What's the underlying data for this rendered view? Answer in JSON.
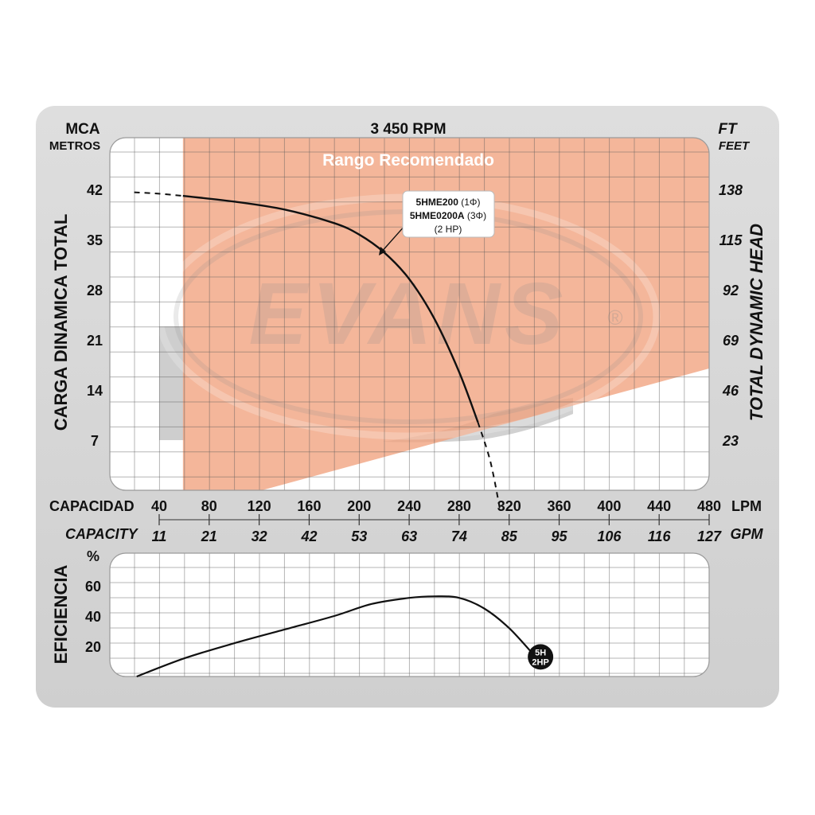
{
  "header": {
    "rpm": "3 450 RPM",
    "left_unit": "MCA",
    "left_unit_sub": "METROS",
    "right_unit": "FT",
    "right_unit_sub": "FEET"
  },
  "watermark": {
    "text": "EVANS",
    "registered": "®"
  },
  "chart_data": [
    {
      "type": "line",
      "title": "3 450 RPM",
      "ylabel": "CARGA  DINAMICA  TOTAL",
      "ylabel_right": "TOTAL  DYNAMIC  HEAD",
      "xlabel": "CAPACIDAD",
      "xlabel_alt": "CAPACITY",
      "x_unit": "LPM",
      "x_unit_alt": "GPM",
      "xlim": [
        20,
        480
      ],
      "ylim": [
        -3,
        48
      ],
      "grid": true,
      "x_ticks": [
        40,
        80,
        120,
        160,
        200,
        240,
        280,
        320,
        360,
        400,
        440,
        480
      ],
      "x_ticks_gpm": [
        "11",
        "21",
        "32",
        "42",
        "53",
        "63",
        "74",
        "85",
        "95",
        "106",
        "116",
        "127"
      ],
      "y_ticks": [
        7,
        14,
        21,
        28,
        35,
        42
      ],
      "y_ticks_ft": [
        "23",
        "46",
        "69",
        "92",
        "115",
        "138"
      ],
      "recommended_range": {
        "label": "Rango Recomendado",
        "x_start": 59,
        "lower_boundary": [
          [
            59,
            -3
          ],
          [
            480,
            17
          ]
        ]
      },
      "series": [
        {
          "name": "5HME200 (1Φ) 5HME0200A (3Φ) (2 HP)",
          "solid": [
            [
              59,
              41.1
            ],
            [
              100,
              40.3
            ],
            [
              140,
              39.2
            ],
            [
              180,
              37.3
            ],
            [
              200,
              35.7
            ],
            [
              220,
              33.2
            ],
            [
              240,
              29.5
            ],
            [
              260,
              24.0
            ],
            [
              280,
              16.5
            ],
            [
              295,
              9.5
            ]
          ],
          "dashed_start": [
            [
              20,
              41.6
            ],
            [
              40,
              41.4
            ],
            [
              59,
              41.1
            ]
          ],
          "dashed_end": [
            [
              295,
              9.5
            ],
            [
              305,
              4.0
            ],
            [
              313,
              -3.0
            ]
          ]
        }
      ],
      "callout": {
        "model_1": "5HME200",
        "phase_1": "(1Φ)",
        "model_2": "5HME0200A",
        "phase_2": "(3Φ)",
        "power": "(2 HP)"
      }
    },
    {
      "type": "line",
      "ylabel": "EFICIENCIA",
      "y_unit": "%",
      "xlim": [
        20,
        480
      ],
      "ylim": [
        0,
        75
      ],
      "grid": true,
      "y_ticks": [
        20,
        40,
        60
      ],
      "series": [
        {
          "name": "5H 2HP",
          "points": [
            [
              22,
              0
            ],
            [
              60,
              12
            ],
            [
              100,
              22
            ],
            [
              140,
              31
            ],
            [
              180,
              40
            ],
            [
              210,
              48
            ],
            [
              240,
              52
            ],
            [
              260,
              53
            ],
            [
              280,
              52
            ],
            [
              300,
              45
            ],
            [
              320,
              32
            ],
            [
              340,
              14
            ]
          ]
        }
      ],
      "end_badge": {
        "line1": "5H",
        "line2": "2HP"
      }
    }
  ]
}
